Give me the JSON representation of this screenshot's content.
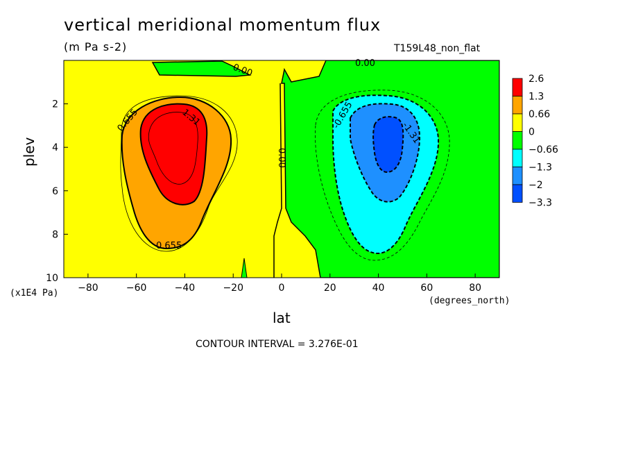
{
  "chart_data": {
    "type": "contour",
    "title": "vertical meridional momentum flux",
    "subtitle": "(m Pa s-2)",
    "run_label": "T159L48_non_flat",
    "xlabel": "lat",
    "ylabel": "plev",
    "x_unit": "(degrees_north)",
    "y_unit": "(x1E4 Pa)",
    "xlim": [
      -90,
      90
    ],
    "ylim": [
      10,
      0
    ],
    "x_ticks": [
      -80,
      -60,
      -40,
      -20,
      0,
      20,
      40,
      60,
      80
    ],
    "x_tick_labels": [
      "−80",
      "−60",
      "−40",
      "−20",
      "0",
      "20",
      "40",
      "60",
      "80"
    ],
    "y_ticks": [
      2,
      4,
      6,
      8,
      10
    ],
    "y_tick_labels": [
      "2",
      "4",
      "6",
      "8",
      "10"
    ],
    "contour_interval_text": "CONTOUR INTERVAL = 3.276E-01",
    "colorbar": {
      "labels": [
        "2.6",
        "1.3",
        "0.66",
        "0",
        "−0.66",
        "−1.3",
        "−2",
        "−3.3"
      ],
      "colors": [
        "#ff0000",
        "#ffa500",
        "#ffff00",
        "#00ff00",
        "#00ffff",
        "#1e90ff",
        "#0050ff"
      ]
    },
    "contour_labels": [
      "0.655",
      "1.31",
      "0.655",
      "0.00",
      "0.00",
      "0.00",
      "-0.655",
      "-1.31"
    ],
    "features": [
      {
        "sign": "positive",
        "center_lat": -45,
        "center_plev": 4.0,
        "peak_approx": 2.6
      },
      {
        "sign": "negative",
        "center_lat": 43,
        "center_plev": 3.8,
        "peak_approx": -3.3
      }
    ]
  }
}
